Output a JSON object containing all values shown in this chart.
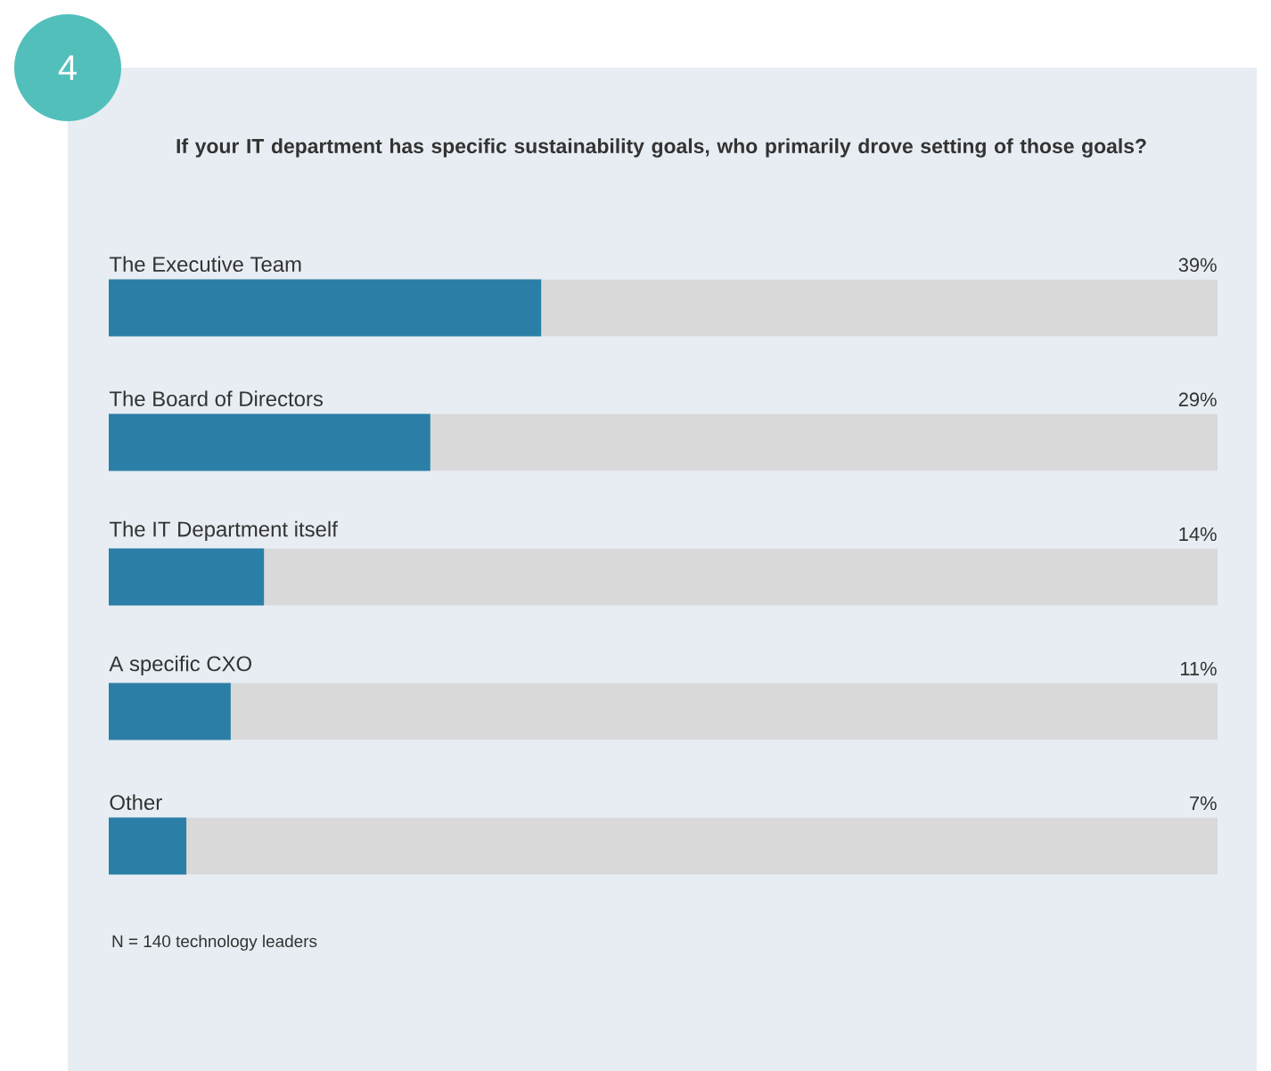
{
  "chart_data": {
    "type": "bar",
    "orientation": "horizontal",
    "title": "If your IT department has specific sustainability goals, who primarily drove setting of those goals?",
    "categories": [
      "The Executive Team",
      "The Board of Directors",
      "The IT Department itself",
      "A specific CXO",
      "Other"
    ],
    "values": [
      39,
      29,
      14,
      11,
      7
    ],
    "value_labels": [
      "39%",
      "29%",
      "14%",
      "11%",
      "7%"
    ],
    "color": "#2b7fa6",
    "xlim": [
      0,
      100
    ],
    "annotations": [
      "4",
      "N = 140 technology leaders"
    ]
  }
}
